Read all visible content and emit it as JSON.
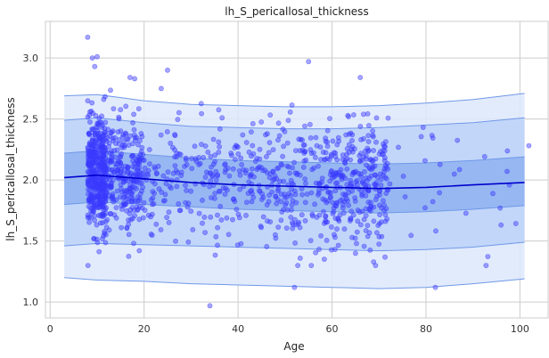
{
  "chart_data": {
    "type": "scatter",
    "title": "lh_S_pericallosal_thickness",
    "xlabel": "Age",
    "ylabel": "lh_S_pericallosal_thickness",
    "xlim": [
      -1,
      106
    ],
    "ylim": [
      0.87,
      3.3
    ],
    "xticks": [
      0,
      20,
      40,
      60,
      80,
      100
    ],
    "yticks": [
      1.0,
      1.5,
      2.0,
      2.5,
      3.0
    ],
    "xtick_labels": [
      "0",
      "20",
      "40",
      "60",
      "80",
      "100"
    ],
    "ytick_labels": [
      "1.0",
      "1.5",
      "2.0",
      "2.5",
      "3.0"
    ],
    "grid": true,
    "colors": {
      "points": "#3a3aff",
      "median_line": "#0000cc",
      "band_outer": "#dde7fb",
      "band_mid": "#bcd2f8",
      "band_inner": "#8fb2f1",
      "band_edge": "#6f98e8",
      "grid": "#cccccc",
      "background": "#ffffff"
    },
    "median": {
      "x": [
        3,
        10,
        20,
        30,
        40,
        50,
        60,
        70,
        80,
        90,
        101
      ],
      "y": [
        2.02,
        2.04,
        2.01,
        1.98,
        1.96,
        1.95,
        1.94,
        1.93,
        1.94,
        1.96,
        1.98
      ]
    },
    "bands": [
      {
        "x": [
          3,
          10,
          20,
          30,
          40,
          50,
          60,
          70,
          80,
          90,
          101
        ],
        "lower": [
          1.2,
          1.18,
          1.17,
          1.15,
          1.14,
          1.13,
          1.12,
          1.11,
          1.12,
          1.15,
          1.19
        ],
        "upper": [
          2.69,
          2.7,
          2.65,
          2.62,
          2.61,
          2.6,
          2.6,
          2.61,
          2.63,
          2.66,
          2.71
        ]
      },
      {
        "x": [
          3,
          10,
          20,
          30,
          40,
          50,
          60,
          70,
          80,
          90,
          101
        ],
        "lower": [
          1.46,
          1.48,
          1.47,
          1.46,
          1.45,
          1.44,
          1.43,
          1.42,
          1.43,
          1.45,
          1.49
        ],
        "upper": [
          2.49,
          2.51,
          2.47,
          2.44,
          2.43,
          2.42,
          2.42,
          2.43,
          2.45,
          2.47,
          2.51
        ]
      },
      {
        "x": [
          3,
          10,
          20,
          30,
          40,
          50,
          60,
          70,
          80,
          90,
          101
        ],
        "lower": [
          1.8,
          1.82,
          1.8,
          1.78,
          1.76,
          1.75,
          1.74,
          1.73,
          1.74,
          1.76,
          1.79
        ],
        "upper": [
          2.22,
          2.24,
          2.21,
          2.18,
          2.16,
          2.15,
          2.14,
          2.13,
          2.14,
          2.16,
          2.19
        ]
      }
    ],
    "clusters": [
      {
        "x_min": 8,
        "x_max": 12,
        "y_mean": 2.05,
        "y_sd": 0.22,
        "count": 420
      },
      {
        "x_min": 12,
        "x_max": 20,
        "y_mean": 2.03,
        "y_sd": 0.23,
        "count": 260
      },
      {
        "x_min": 20,
        "x_max": 40,
        "y_mean": 1.99,
        "y_sd": 0.25,
        "count": 170
      },
      {
        "x_min": 40,
        "x_max": 58,
        "y_mean": 1.97,
        "y_sd": 0.27,
        "count": 210
      },
      {
        "x_min": 58,
        "x_max": 72,
        "y_mean": 1.95,
        "y_sd": 0.26,
        "count": 300
      },
      {
        "x_min": 72,
        "x_max": 102,
        "y_mean": 1.93,
        "y_sd": 0.25,
        "count": 30
      }
    ],
    "outliers": {
      "x": [
        8,
        9,
        9.5,
        10,
        17,
        18,
        25,
        34,
        52,
        55,
        66,
        82
      ],
      "y": [
        3.17,
        3.0,
        2.93,
        3.01,
        2.84,
        2.83,
        2.9,
        0.97,
        1.12,
        2.97,
        2.84,
        1.12
      ]
    }
  }
}
